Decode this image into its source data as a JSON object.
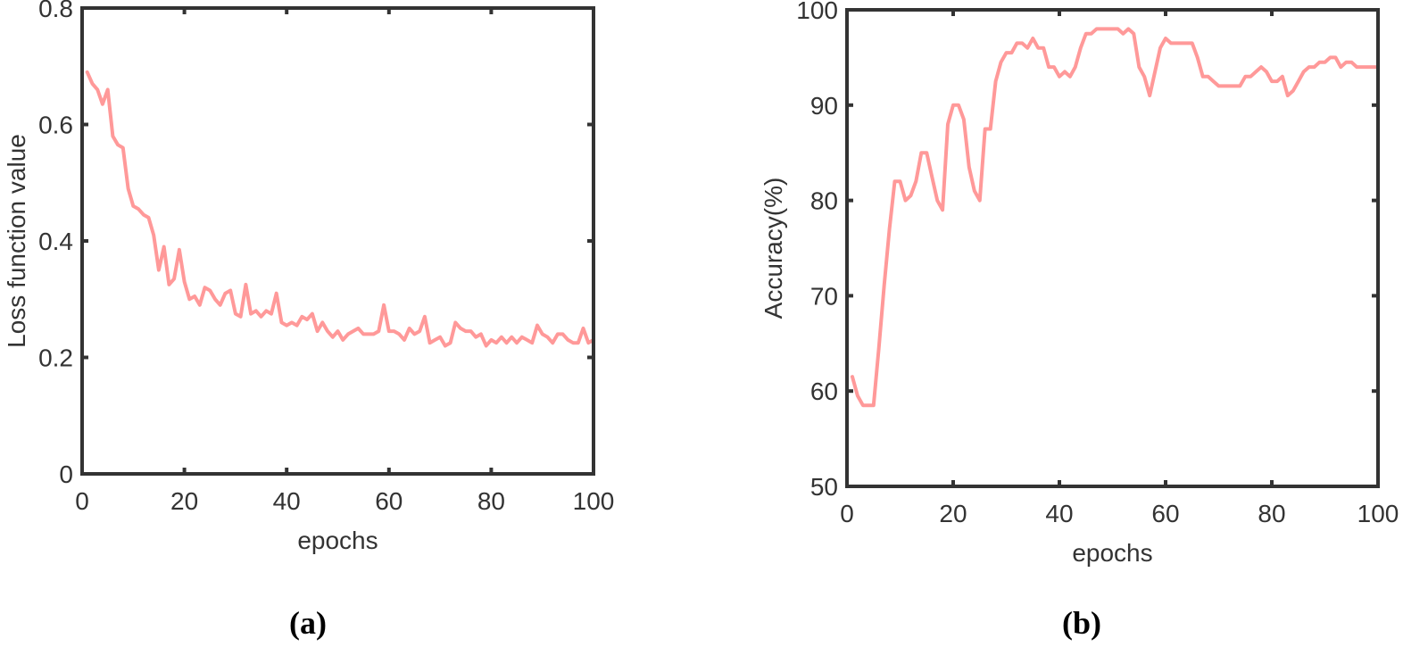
{
  "colors": {
    "series": "#FF9999",
    "axis": "#333333",
    "background": "#ffffff"
  },
  "chart_data": [
    {
      "type": "line",
      "caption": "(a)",
      "xlabel": "epochs",
      "ylabel": "Loss function value",
      "xlim": [
        0,
        100
      ],
      "ylim": [
        0,
        0.8
      ],
      "xticks": [
        0,
        20,
        40,
        60,
        80,
        100
      ],
      "xtick_labels": [
        "0",
        "20",
        "40",
        "60",
        "80",
        "100"
      ],
      "yticks": [
        0,
        0.2,
        0.4,
        0.6,
        0.8
      ],
      "ytick_labels": [
        "0",
        "0.2",
        "0.4",
        "0.6",
        "0.8"
      ],
      "grid": false,
      "series": [
        {
          "color": "#FF9999",
          "x": [
            1,
            2,
            3,
            4,
            5,
            6,
            7,
            8,
            9,
            10,
            11,
            12,
            13,
            14,
            15,
            16,
            17,
            18,
            19,
            20,
            21,
            22,
            23,
            24,
            25,
            26,
            27,
            28,
            29,
            30,
            31,
            32,
            33,
            34,
            35,
            36,
            37,
            38,
            39,
            40,
            41,
            42,
            43,
            44,
            45,
            46,
            47,
            48,
            49,
            50,
            51,
            52,
            53,
            54,
            55,
            56,
            57,
            58,
            59,
            60,
            61,
            62,
            63,
            64,
            65,
            66,
            67,
            68,
            69,
            70,
            71,
            72,
            73,
            74,
            75,
            76,
            77,
            78,
            79,
            80,
            81,
            82,
            83,
            84,
            85,
            86,
            87,
            88,
            89,
            90,
            91,
            92,
            93,
            94,
            95,
            96,
            97,
            98,
            99,
            100
          ],
          "y": [
            0.69,
            0.67,
            0.66,
            0.635,
            0.66,
            0.58,
            0.565,
            0.56,
            0.49,
            0.46,
            0.455,
            0.445,
            0.44,
            0.41,
            0.35,
            0.39,
            0.325,
            0.335,
            0.385,
            0.33,
            0.3,
            0.305,
            0.29,
            0.32,
            0.315,
            0.3,
            0.29,
            0.31,
            0.315,
            0.275,
            0.27,
            0.325,
            0.275,
            0.28,
            0.27,
            0.28,
            0.275,
            0.31,
            0.26,
            0.255,
            0.26,
            0.255,
            0.27,
            0.265,
            0.275,
            0.245,
            0.26,
            0.245,
            0.235,
            0.245,
            0.23,
            0.24,
            0.245,
            0.25,
            0.24,
            0.24,
            0.24,
            0.245,
            0.29,
            0.245,
            0.245,
            0.24,
            0.23,
            0.25,
            0.24,
            0.245,
            0.27,
            0.225,
            0.23,
            0.235,
            0.22,
            0.225,
            0.26,
            0.25,
            0.245,
            0.245,
            0.235,
            0.24,
            0.22,
            0.23,
            0.225,
            0.235,
            0.225,
            0.235,
            0.225,
            0.235,
            0.23,
            0.225,
            0.255,
            0.24,
            0.235,
            0.225,
            0.24,
            0.24,
            0.23,
            0.225,
            0.225,
            0.25,
            0.225,
            0.23
          ]
        }
      ]
    },
    {
      "type": "line",
      "caption": "(b)",
      "xlabel": "epochs",
      "ylabel": "Accuracy(%)",
      "xlim": [
        0,
        100
      ],
      "ylim": [
        50,
        100
      ],
      "xticks": [
        0,
        20,
        40,
        60,
        80,
        100
      ],
      "xtick_labels": [
        "0",
        "20",
        "40",
        "60",
        "80",
        "100"
      ],
      "yticks": [
        50,
        60,
        70,
        80,
        90,
        100
      ],
      "ytick_labels": [
        "50",
        "60",
        "70",
        "80",
        "90",
        "100"
      ],
      "grid": false,
      "series": [
        {
          "color": "#FF9999",
          "x": [
            1,
            2,
            3,
            4,
            5,
            6,
            7,
            8,
            9,
            10,
            11,
            12,
            13,
            14,
            15,
            16,
            17,
            18,
            19,
            20,
            21,
            22,
            23,
            24,
            25,
            26,
            27,
            28,
            29,
            30,
            31,
            32,
            33,
            34,
            35,
            36,
            37,
            38,
            39,
            40,
            41,
            42,
            43,
            44,
            45,
            46,
            47,
            48,
            49,
            50,
            51,
            52,
            53,
            54,
            55,
            56,
            57,
            58,
            59,
            60,
            61,
            62,
            63,
            64,
            65,
            66,
            67,
            68,
            69,
            70,
            71,
            72,
            73,
            74,
            75,
            76,
            77,
            78,
            79,
            80,
            81,
            82,
            83,
            84,
            85,
            86,
            87,
            88,
            89,
            90,
            91,
            92,
            93,
            94,
            95,
            96,
            97,
            98,
            99,
            100
          ],
          "y": [
            61.5,
            59.5,
            58.5,
            58.5,
            58.5,
            64.5,
            71,
            77,
            82,
            82,
            80,
            80.5,
            82,
            85,
            85,
            82.5,
            80,
            79,
            88,
            90,
            90,
            88.5,
            83.5,
            81,
            80,
            87.5,
            87.5,
            92.5,
            94.5,
            95.5,
            95.5,
            96.5,
            96.5,
            96,
            97,
            96,
            96,
            94,
            94,
            93,
            93.5,
            93,
            94,
            96,
            97.5,
            97.5,
            98,
            98,
            98,
            98,
            98,
            97.5,
            98,
            97.5,
            94,
            93,
            91,
            93.5,
            96,
            97,
            96.5,
            96.5,
            96.5,
            96.5,
            96.5,
            95,
            93,
            93,
            92.5,
            92,
            92,
            92,
            92,
            92,
            93,
            93,
            93.5,
            94,
            93.5,
            92.5,
            92.5,
            93,
            91,
            91.5,
            92.5,
            93.5,
            94,
            94,
            94.5,
            94.5,
            95,
            95,
            94,
            94.5,
            94.5,
            94,
            94,
            94,
            94,
            94
          ]
        }
      ]
    }
  ]
}
